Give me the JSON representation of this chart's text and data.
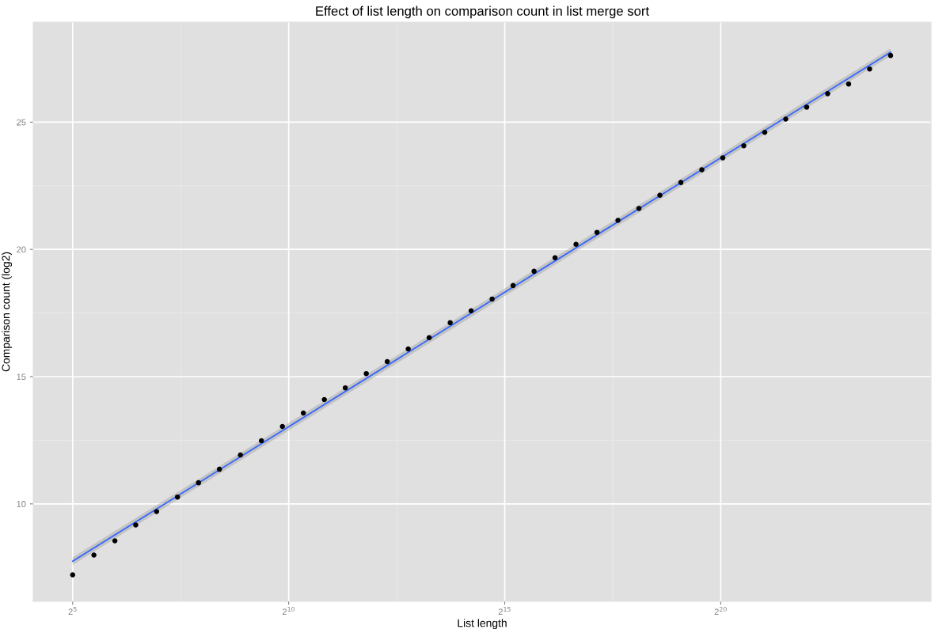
{
  "chart_data": {
    "type": "scatter",
    "title": "Effect of list length on comparison count in list merge sort",
    "xlabel": "List length",
    "ylabel": "Comparison count (log2)",
    "log": "x",
    "x": [
      32,
      45,
      63,
      88,
      123,
      172,
      241,
      337,
      472,
      661,
      926,
      1296,
      1814,
      2540,
      3556,
      4978,
      6969,
      9757,
      13660,
      19124,
      26773,
      37482,
      52475,
      73466,
      102852,
      143993,
      201590,
      282226,
      395116,
      553163,
      774428,
      1084199,
      1517879,
      2125031,
      2975043,
      4165060,
      5831084,
      8163518,
      11428925,
      16000495
    ],
    "series": [
      {
        "color": "#000000",
        "marker": "circle",
        "values": [
          7.21,
          7.99,
          8.55,
          9.17,
          9.7,
          10.27,
          10.83,
          11.36,
          11.92,
          12.48,
          13.04,
          13.57,
          14.1,
          14.56,
          15.12,
          15.59,
          16.09,
          16.53,
          17.12,
          17.59,
          18.05,
          18.58,
          19.14,
          19.67,
          20.2,
          20.67,
          21.14,
          21.61,
          22.13,
          22.63,
          23.13,
          23.6,
          24.07,
          24.6,
          25.12,
          25.59,
          26.12,
          26.5,
          27.09,
          27.62
        ]
      },
      {
        "type": "line",
        "color": "#3366ff",
        "x": [
          32,
          16000495
        ],
        "values": [
          7.75,
          27.75
        ],
        "lower": [
          7.6,
          27.6
        ],
        "upper": [
          7.9,
          27.9
        ]
      }
    ],
    "grid": true,
    "xlim": [
      17,
      30600000
    ],
    "ylim": [
      6.17,
      28.93
    ],
    "xticks": [
      {
        "value": 32,
        "label": "2$^{5}$"
      },
      {
        "value": 1024,
        "label": "2$^{10}$"
      },
      {
        "value": 32768,
        "label": "2$^{15}$"
      },
      {
        "value": 1048576,
        "label": "2$^{20}$"
      }
    ],
    "yticks": [
      10,
      15,
      20,
      25
    ]
  }
}
